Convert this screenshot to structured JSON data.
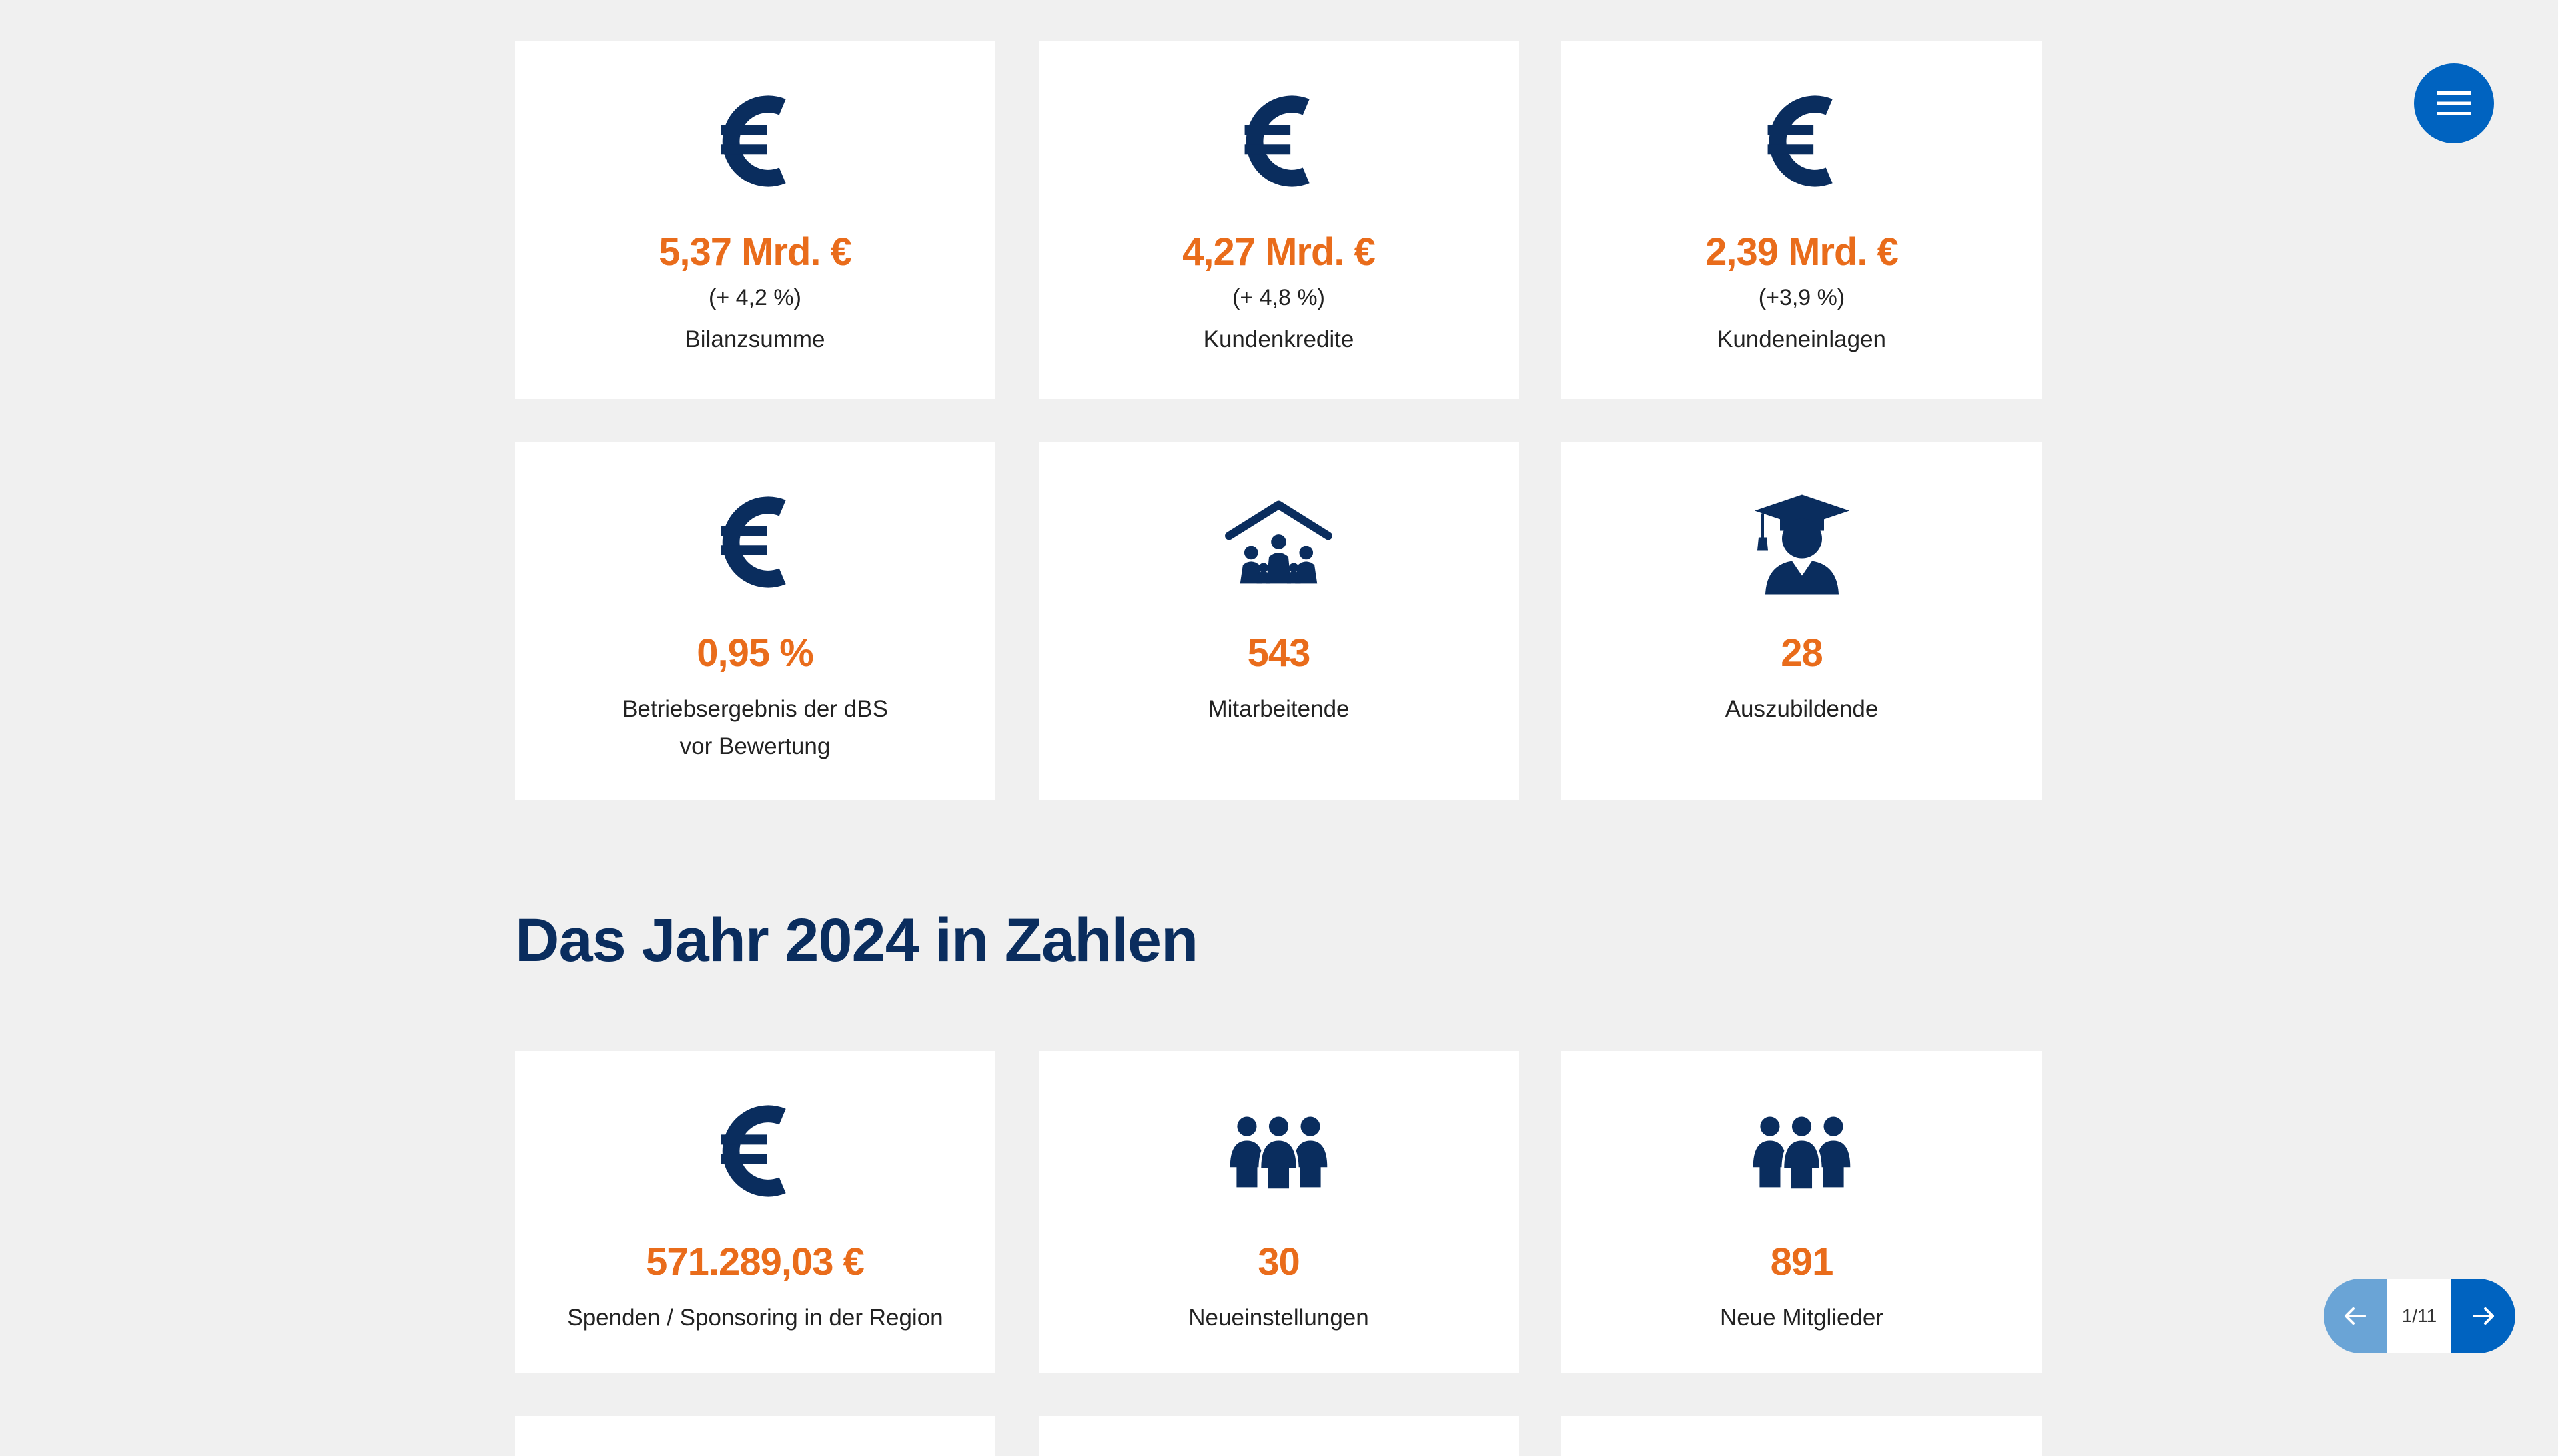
{
  "kpi_cards": [
    {
      "icon": "euro-icon",
      "value": "5,37 Mrd. €",
      "change": "(+ 4,2 %)",
      "label": "Bilanzsumme"
    },
    {
      "icon": "euro-icon",
      "value": "4,27 Mrd. €",
      "change": "(+ 4,8 %)",
      "label": "Kundenkredite"
    },
    {
      "icon": "euro-icon",
      "value": "2,39 Mrd. €",
      "change": "(+3,9 %)",
      "label": "Kundeneinlagen"
    },
    {
      "icon": "euro-icon",
      "value": "0,95 %",
      "label_line1": "Betriebsergebnis der dBS",
      "label_line2": "vor Bewertung"
    },
    {
      "icon": "family-house-icon",
      "value": "543",
      "label": "Mitarbeitende"
    },
    {
      "icon": "graduate-icon",
      "value": "28",
      "label": "Auszubildende"
    }
  ],
  "year_section": {
    "title": "Das Jahr 2024 in Zahlen",
    "cards": [
      {
        "icon": "euro-icon",
        "value": "571.289,03 €",
        "label": "Spenden / Sponsoring in der Region"
      },
      {
        "icon": "group-icon",
        "value": "30",
        "label": "Neueinstellungen"
      },
      {
        "icon": "group-icon",
        "value": "891",
        "label": "Neue Mitglieder"
      }
    ]
  },
  "navigation": {
    "menu_icon": "hamburger-icon",
    "prev_icon": "arrow-left-icon",
    "next_icon": "arrow-right-icon",
    "page_indicator": "1/11"
  },
  "colors": {
    "background": "#f0f0f0",
    "card": "#ffffff",
    "accent_orange": "#e96c1b",
    "navy": "#0a2d5e",
    "brand_blue": "#0063c0",
    "light_blue": "#6aa4d6"
  }
}
